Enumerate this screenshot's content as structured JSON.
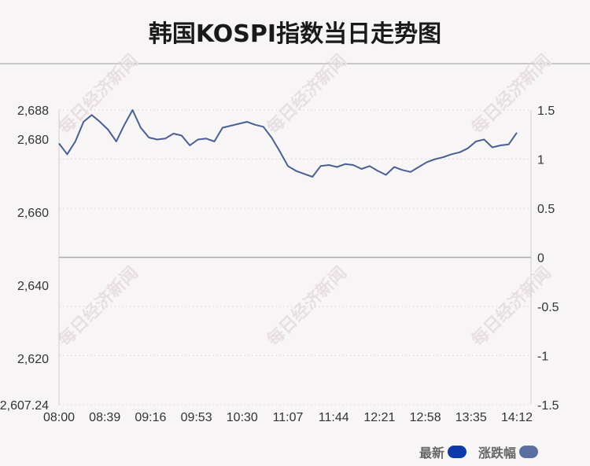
{
  "header": {
    "title": "韩国KOSPI指数当日走势图"
  },
  "watermark": {
    "text": "每日经济新闻"
  },
  "legend": {
    "latest_label": "最新",
    "change_label": "涨跌幅",
    "latest_color": "#0d3aa8",
    "change_color": "#5a6fa0"
  },
  "chart_data": {
    "type": "line",
    "title": "韩国KOSPI指数当日走势图",
    "xlabel": "",
    "ylabel": "",
    "x_tick_labels": [
      "08:00",
      "08:39",
      "09:16",
      "09:53",
      "10:30",
      "11:07",
      "11:44",
      "12:21",
      "12:58",
      "13:35",
      "14:12"
    ],
    "left_axis": {
      "ticks": [
        "2,607.24",
        "2,620",
        "2,640",
        "2,660",
        "2,680",
        "2,688"
      ],
      "tick_values": [
        2607.24,
        2620,
        2640,
        2660,
        2680,
        2688
      ],
      "range": [
        2607.24,
        2688.0
      ]
    },
    "right_axis": {
      "ticks": [
        "-1.5",
        "-1",
        "-0.5",
        "0",
        "0.5",
        "1",
        "1.5"
      ],
      "tick_values": [
        -1.5,
        -1,
        -0.5,
        0,
        0.5,
        1,
        1.5
      ],
      "range": [
        -1.5,
        1.5
      ]
    },
    "reference_line": 0,
    "line_color": "#4a5f92",
    "series": [
      {
        "name": "涨跌幅",
        "x_start": "08:00",
        "x_end": "14:12",
        "values": [
          1.16,
          1.05,
          1.18,
          1.38,
          1.45,
          1.38,
          1.3,
          1.18,
          1.35,
          1.5,
          1.32,
          1.22,
          1.2,
          1.21,
          1.26,
          1.24,
          1.14,
          1.2,
          1.21,
          1.18,
          1.32,
          1.34,
          1.36,
          1.38,
          1.35,
          1.33,
          1.22,
          1.08,
          0.93,
          0.88,
          0.85,
          0.82,
          0.93,
          0.94,
          0.92,
          0.95,
          0.94,
          0.9,
          0.93,
          0.88,
          0.84,
          0.92,
          0.89,
          0.87,
          0.92,
          0.97,
          1.0,
          1.02,
          1.05,
          1.07,
          1.11,
          1.18,
          1.2,
          1.12,
          1.14,
          1.15,
          1.27
        ]
      }
    ]
  }
}
